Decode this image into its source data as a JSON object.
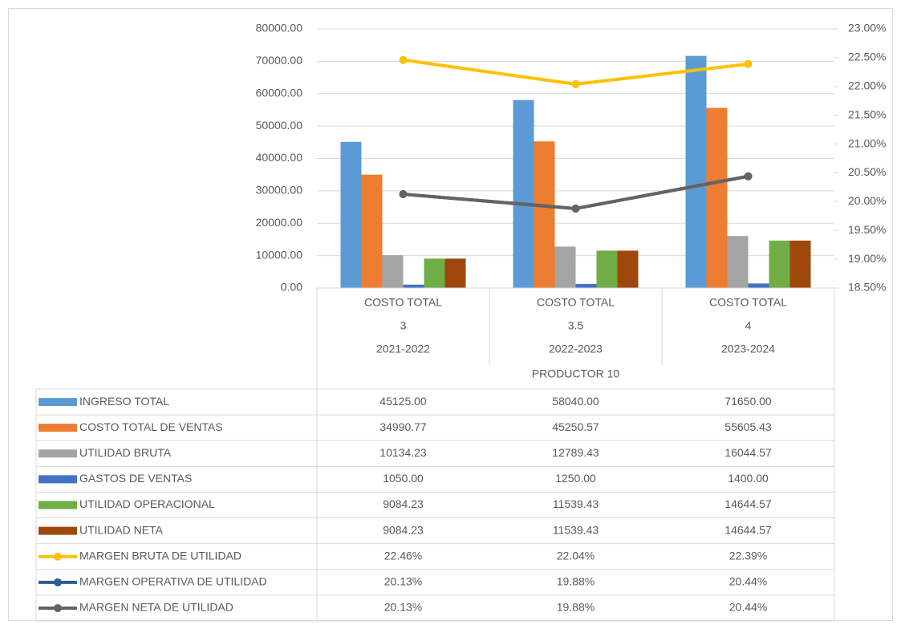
{
  "chart_data": {
    "type": "bar_line_table",
    "categories": [
      [
        "COSTO TOTAL",
        "3",
        "2021-2022"
      ],
      [
        "COSTO TOTAL",
        "3.5",
        "2022-2023"
      ],
      [
        "COSTO TOTAL",
        "4",
        "2023-2024"
      ]
    ],
    "category_group": "PRODUCTOR 10",
    "ylim": [
      0,
      80000
    ],
    "yticks": [
      {
        "value": 0,
        "label": "0.00"
      },
      {
        "value": 10000,
        "label": "10000.00"
      },
      {
        "value": 20000,
        "label": "20000.00"
      },
      {
        "value": 30000,
        "label": "30000.00"
      },
      {
        "value": 40000,
        "label": "40000.00"
      },
      {
        "value": 50000,
        "label": "50000.00"
      },
      {
        "value": 60000,
        "label": "60000.00"
      },
      {
        "value": 70000,
        "label": "70000.00"
      },
      {
        "value": 80000,
        "label": "80000.00"
      }
    ],
    "y2lim": [
      18.5,
      23
    ],
    "y2ticks": [
      {
        "value": 18.5,
        "label": "18.50%"
      },
      {
        "value": 19,
        "label": "19.00%"
      },
      {
        "value": 19.5,
        "label": "19.50%"
      },
      {
        "value": 20,
        "label": "20.00%"
      },
      {
        "value": 20.5,
        "label": "20.50%"
      },
      {
        "value": 21,
        "label": "21.00%"
      },
      {
        "value": 21.5,
        "label": "21.50%"
      },
      {
        "value": 22,
        "label": "22.00%"
      },
      {
        "value": 22.5,
        "label": "22.50%"
      },
      {
        "value": 23,
        "label": "23.00%"
      }
    ],
    "grid": true,
    "series": [
      {
        "name": "INGRESO TOTAL",
        "kind": "bar",
        "color": "#5b9bd5",
        "values": [
          45125,
          58040,
          71650
        ],
        "value_labels": [
          "45125.00",
          "58040.00",
          "71650.00"
        ]
      },
      {
        "name": "COSTO TOTAL DE VENTAS",
        "kind": "bar",
        "color": "#ed7d31",
        "values": [
          34990.77,
          45250.57,
          55605.43
        ],
        "value_labels": [
          "34990.77",
          "45250.57",
          "55605.43"
        ]
      },
      {
        "name": "UTILIDAD BRUTA",
        "kind": "bar",
        "color": "#a5a5a5",
        "values": [
          10134.23,
          12789.43,
          16044.57
        ],
        "value_labels": [
          "10134.23",
          "12789.43",
          "16044.57"
        ]
      },
      {
        "name": "GASTOS DE VENTAS",
        "kind": "bar",
        "color": "#4472c4",
        "values": [
          1050,
          1250,
          1400
        ],
        "value_labels": [
          "1050.00",
          "1250.00",
          "1400.00"
        ]
      },
      {
        "name": "UTILIDAD OPERACIONAL",
        "kind": "bar",
        "color": "#70ad47",
        "values": [
          9084.23,
          11539.43,
          14644.57
        ],
        "value_labels": [
          "9084.23",
          "11539.43",
          "14644.57"
        ]
      },
      {
        "name": "UTILIDAD NETA",
        "kind": "bar",
        "color": "#9e480e",
        "values": [
          9084.23,
          11539.43,
          14644.57
        ],
        "value_labels": [
          "9084.23",
          "11539.43",
          "14644.57"
        ]
      },
      {
        "name": "MARGEN BRUTA DE UTILIDAD",
        "kind": "line",
        "axis": "y2",
        "color": "#ffc000",
        "values": [
          22.46,
          22.04,
          22.39
        ],
        "value_labels": [
          "22.46%",
          "22.04%",
          "22.39%"
        ]
      },
      {
        "name": "MARGEN OPERATIVA DE UTILIDAD",
        "kind": "line",
        "axis": "y2",
        "color": "#255e91",
        "values": [
          20.13,
          19.88,
          20.44
        ],
        "value_labels": [
          "20.13%",
          "19.88%",
          "20.44%"
        ]
      },
      {
        "name": "MARGEN NETA DE UTILIDAD",
        "kind": "line",
        "axis": "y2",
        "color": "#636363",
        "values": [
          20.13,
          19.88,
          20.44
        ],
        "value_labels": [
          "20.13%",
          "19.88%",
          "20.44%"
        ]
      }
    ]
  }
}
